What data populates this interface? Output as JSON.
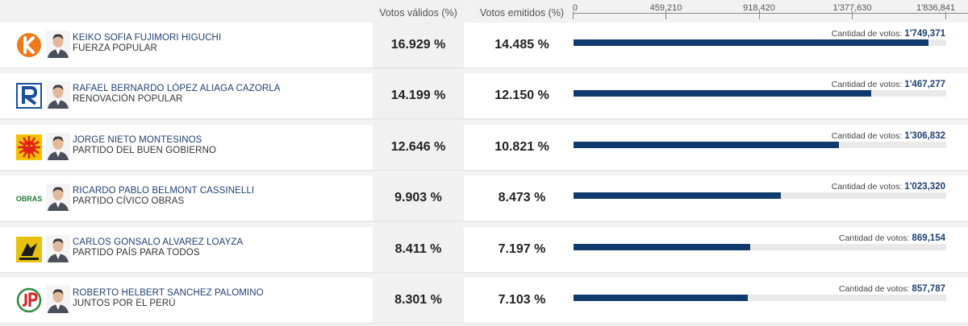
{
  "header": {
    "valid_label": "Votos válidos (%)",
    "emitted_label": "Votos emitidos (%)"
  },
  "votes_label": "Cantidad de votos:",
  "chart_data": {
    "type": "bar",
    "orientation": "horizontal",
    "axis": {
      "min": 0,
      "max": 1836841,
      "ticks": [
        0,
        459210,
        918420,
        1377630,
        1836841
      ],
      "tick_labels": [
        "0",
        "459,210",
        "918,420",
        "1'377,630",
        "1'836,841"
      ]
    },
    "categories": [
      "KEIKO SOFIA FUJIMORI HIGUCHI",
      "RAFAEL BERNARDO LÓPEZ ALIAGA CAZORLA",
      "JORGE NIETO MONTESINOS",
      "RICARDO PABLO BELMONT CASSINELLI",
      "CARLOS GONSALO ALVAREZ LOAYZA",
      "ROBERTO HELBERT SANCHEZ PALOMINO"
    ],
    "values": [
      1749371,
      1467277,
      1306832,
      1023320,
      869154,
      857787
    ],
    "rows": [
      {
        "candidate": "KEIKO SOFIA FUJIMORI HIGUCHI",
        "party": "FUERZA POPULAR",
        "valid_pct": "16.929 %",
        "emitted_pct": "14.485 %",
        "votes": 1749371,
        "votes_label": "1'749,371",
        "logo": "k-logo-icon",
        "color": "#f07a1a"
      },
      {
        "candidate": "RAFAEL BERNARDO LÓPEZ ALIAGA CAZORLA",
        "party": "RENOVACIÓN POPULAR",
        "valid_pct": "14.199 %",
        "emitted_pct": "12.150 %",
        "votes": 1467277,
        "votes_label": "1'467,277",
        "logo": "r-logo-icon",
        "color": "#1a4f9c"
      },
      {
        "candidate": "JORGE NIETO MONTESINOS",
        "party": "PARTIDO DEL BUEN GOBIERNO",
        "valid_pct": "12.646 %",
        "emitted_pct": "10.821 %",
        "votes": 1306832,
        "votes_label": "1'306,832",
        "logo": "sun-logo-icon",
        "color": "#e3201b"
      },
      {
        "candidate": "RICARDO PABLO BELMONT CASSINELLI",
        "party": "PARTIDO CÍVICO OBRAS",
        "valid_pct": "9.903 %",
        "emitted_pct": "8.473 %",
        "votes": 1023320,
        "votes_label": "1'023,320",
        "logo": "obras-logo-icon",
        "logo_text": "OBRAS",
        "color": "#1e7d3a"
      },
      {
        "candidate": "CARLOS GONSALO ALVAREZ LOAYZA",
        "party": "PARTIDO PAÍS PARA TODOS",
        "valid_pct": "8.411 %",
        "emitted_pct": "7.197 %",
        "votes": 869154,
        "votes_label": "869,154",
        "logo": "condor-logo-icon",
        "color": "#e6c20e"
      },
      {
        "candidate": "ROBERTO HELBERT SANCHEZ PALOMINO",
        "party": "JUNTOS POR EL PERÚ",
        "valid_pct": "8.301 %",
        "emitted_pct": "7.103 %",
        "votes": 857787,
        "votes_label": "857,787",
        "logo": "jp-logo-icon",
        "color": "#2e8b3a"
      }
    ],
    "bar_color": "#0e3b6b",
    "track_color": "#e9e9e9"
  }
}
